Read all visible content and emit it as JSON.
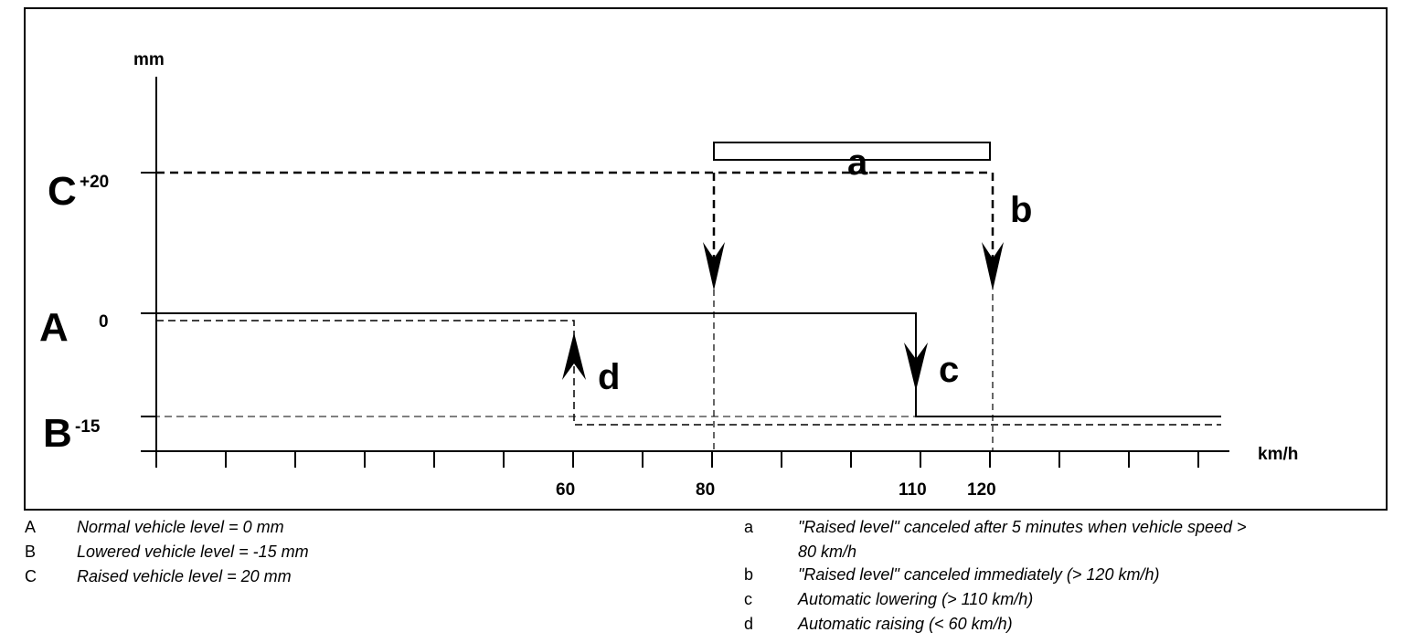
{
  "diagram": {
    "y_unit": "mm",
    "x_unit": "km/h",
    "levels": [
      {
        "letter": "C",
        "value": "+20"
      },
      {
        "letter": "A",
        "value": "0"
      },
      {
        "letter": "B",
        "value": "-15"
      }
    ],
    "x_ticks": [
      "60",
      "80",
      "110",
      "120"
    ],
    "callouts": {
      "a": "a",
      "b": "b",
      "c": "c",
      "d": "d"
    }
  },
  "legend_left": [
    {
      "key": "A",
      "text": "Normal vehicle level = 0 mm"
    },
    {
      "key": "B",
      "text": "Lowered vehicle level = -15 mm"
    },
    {
      "key": "C",
      "text": "Raised vehicle level = 20 mm"
    }
  ],
  "legend_right": [
    {
      "key": "a",
      "text_line1": "\"Raised level\" canceled after 5 minutes when vehicle speed >",
      "text_line2": "80 km/h"
    },
    {
      "key": "b",
      "text": "\"Raised level\" canceled immediately (> 120 km/h)"
    },
    {
      "key": "c",
      "text": "Automatic lowering (> 110 km/h)"
    },
    {
      "key": "d",
      "text": "Automatic raising (< 60 km/h)"
    }
  ]
}
